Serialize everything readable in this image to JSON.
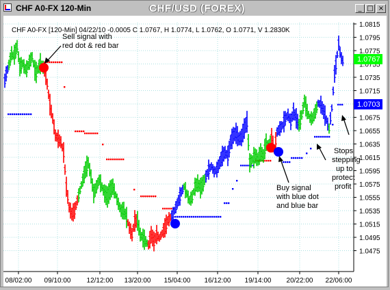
{
  "window": {
    "title": "CHF A0-FX 120-Min",
    "chart_title": "CHF/USD (FOREX)",
    "buttons": {
      "minimize": "_",
      "maximize": "□",
      "close": "×"
    }
  },
  "colors": {
    "up_bar": "#00cc00",
    "down_bar": "#ff0000",
    "signal_bar": "#0000ff",
    "stop_dots": "#0000ff",
    "sell_stop_dots": "#ff0000",
    "grid": "#a8e0e0",
    "last_price_bg": "#00ff00",
    "stop_label_bg": "#0000ff"
  },
  "chart_data": {
    "type": "bar",
    "subtype": "ohlc",
    "info_line": "CHF A0-FX [120-Min] 04/22/10  -0.0005 C 1.0767, H 1.0774, L 1.0762, O 1.0771, V 1.2830K",
    "y_ticks": [
      "1.0815",
      "1.0795",
      "1.0775",
      "1.0755",
      "1.0735",
      "1.0715",
      "1.0695",
      "1.0675",
      "1.0655",
      "1.0635",
      "1.0615",
      "1.0595",
      "1.0575",
      "1.0555",
      "1.0535",
      "1.0515",
      "1.0495",
      "1.0475"
    ],
    "ylim": [
      1.0475,
      1.0815
    ],
    "x_ticks": [
      "08/02:00",
      "09/10:00",
      "12/12:00",
      "13/20:00",
      "15/04:00",
      "16/12:00",
      "19/14:00",
      "20/22:00",
      "22/06:00"
    ],
    "last_price_label": "1.0767",
    "stop_price_label": "1.0703",
    "annotations": {
      "sell": [
        "Sell signal with",
        "red dot & red bar"
      ],
      "buy": [
        "Buy signal",
        "with blue dot",
        "and blue bar"
      ],
      "stops": [
        "Stops",
        "stepping",
        "up to",
        "protect",
        "profit"
      ]
    },
    "legend": "none",
    "grid": true
  }
}
